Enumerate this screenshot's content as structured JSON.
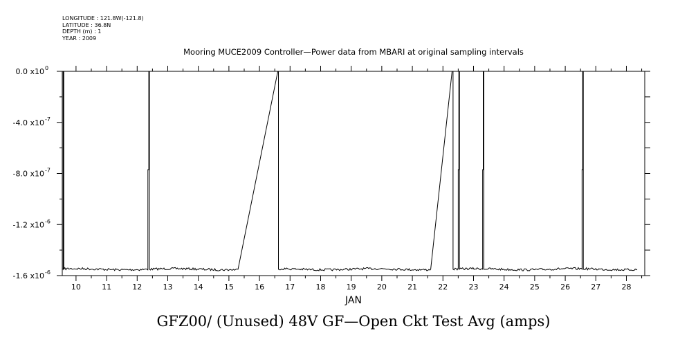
{
  "meta": {
    "longitude": "LONGITUDE : 121.8W(-121.8)",
    "latitude": "LATITUDE : 36.8N",
    "depth": "DEPTH (m) : 1",
    "year": "YEAR : 2009"
  },
  "chart_data": {
    "type": "line",
    "title": "Mooring MUCE2009 Controller—Power data from MBARI at original sampling intervals",
    "xlabel": "JAN",
    "ylabel": "",
    "bottom_title": "GFZ00/ (Unused) 48V GF—Open Ckt Test Avg (amps)",
    "xlim": [
      9.55,
      28.6
    ],
    "ylim": [
      -1.6e-06,
      0
    ],
    "x_ticks": [
      10,
      11,
      12,
      13,
      14,
      15,
      16,
      17,
      18,
      19,
      20,
      21,
      22,
      23,
      24,
      25,
      26,
      27,
      28
    ],
    "y_ticks": [
      {
        "value": 0,
        "label": "0.0 x10",
        "exp": "0"
      },
      {
        "value": -4e-07,
        "label": "-4.0 x10",
        "exp": "-7"
      },
      {
        "value": -8e-07,
        "label": "-8.0 x10",
        "exp": "-7"
      },
      {
        "value": -1.2e-06,
        "label": "-1.2 x10",
        "exp": "-6"
      },
      {
        "value": -1.6e-06,
        "label": "-1.6 x10",
        "exp": "-6"
      }
    ],
    "baseline": -1.55e-06,
    "series": [
      {
        "points": [
          [
            9.55,
            -1.55e-06
          ],
          [
            9.58,
            -1.55e-06
          ],
          [
            9.58,
            0
          ],
          [
            9.6,
            0
          ],
          [
            9.6,
            -1.55e-06
          ],
          [
            12.35,
            -1.55e-06
          ],
          [
            12.35,
            -7.7e-07
          ],
          [
            12.38,
            -7.7e-07
          ],
          [
            12.38,
            0
          ],
          [
            12.4,
            0
          ],
          [
            12.4,
            -1.55e-06
          ],
          [
            15.3,
            -1.55e-06
          ],
          [
            16.6,
            0
          ],
          [
            16.62,
            0
          ],
          [
            16.62,
            -1.55e-06
          ],
          [
            21.6,
            -1.55e-06
          ],
          [
            22.3,
            0
          ],
          [
            22.33,
            0
          ],
          [
            22.33,
            -1.55e-06
          ],
          [
            22.5,
            -1.55e-06
          ],
          [
            22.5,
            -7.7e-07
          ],
          [
            22.52,
            -7.7e-07
          ],
          [
            22.52,
            0
          ],
          [
            22.54,
            0
          ],
          [
            22.54,
            -1.55e-06
          ],
          [
            23.3,
            -1.55e-06
          ],
          [
            23.3,
            -7.7e-07
          ],
          [
            23.32,
            -7.7e-07
          ],
          [
            23.32,
            0
          ],
          [
            23.34,
            0
          ],
          [
            23.34,
            -1.55e-06
          ],
          [
            26.55,
            -1.55e-06
          ],
          [
            26.55,
            -7.7e-07
          ],
          [
            26.57,
            -7.7e-07
          ],
          [
            26.57,
            0
          ],
          [
            26.59,
            0
          ],
          [
            26.59,
            -1.55e-06
          ],
          [
            28.35,
            -1.55e-06
          ]
        ]
      }
    ]
  }
}
